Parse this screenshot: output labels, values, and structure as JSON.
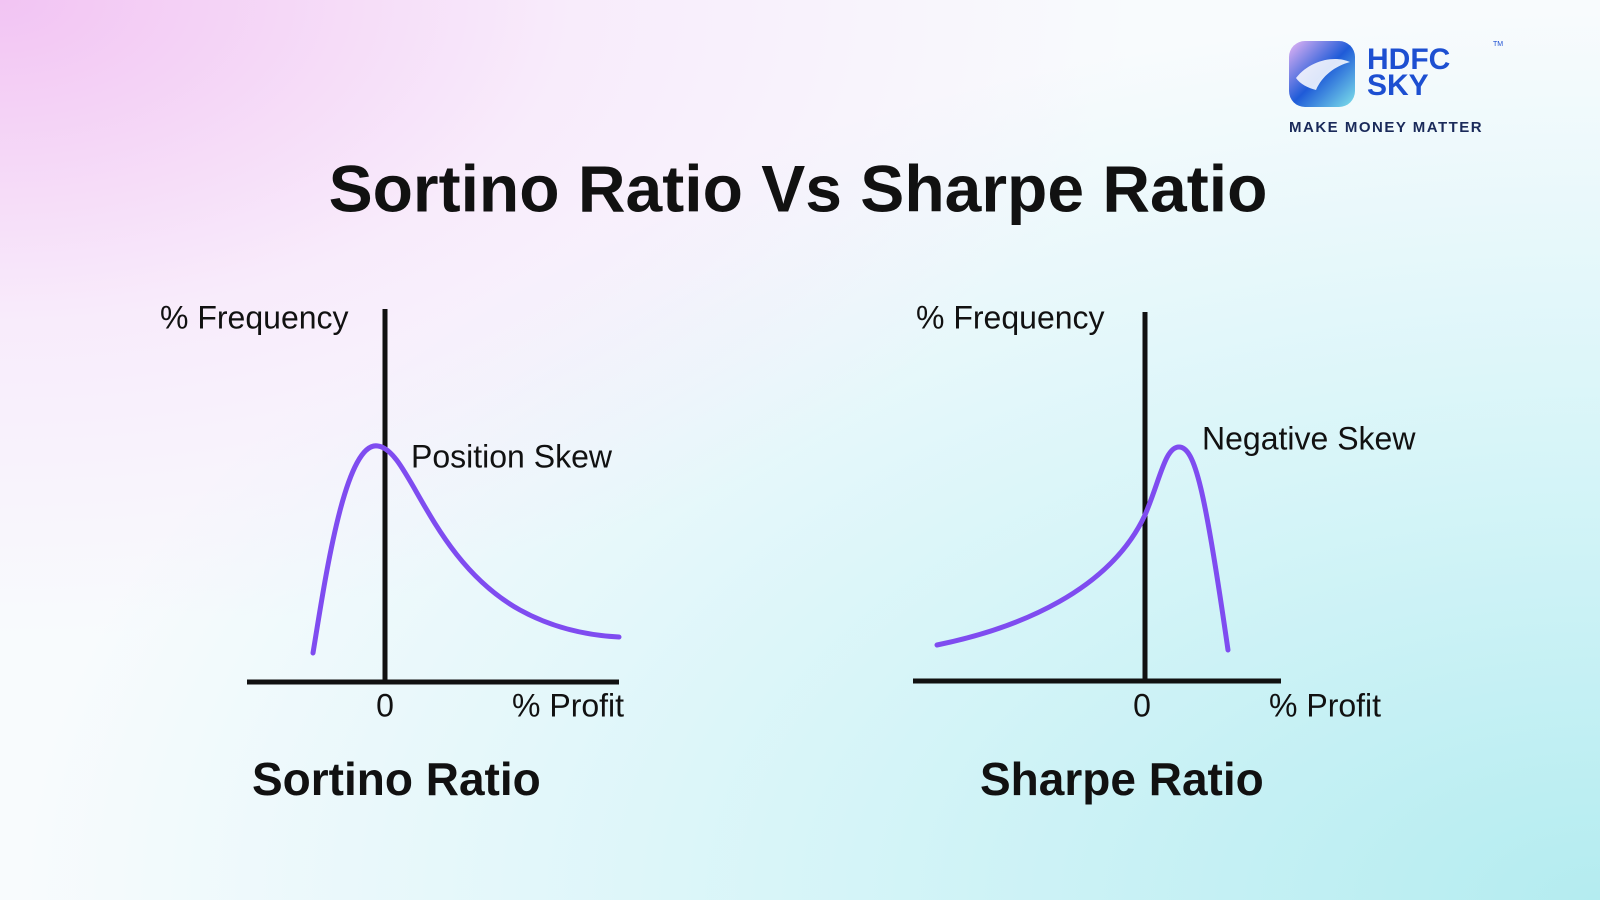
{
  "logo": {
    "brand_top": "HDFC",
    "brand_bottom": "SKY",
    "trademark": "TM",
    "tagline": "MAKE MONEY MATTER"
  },
  "title": "Sortino Ratio Vs Sharpe Ratio",
  "panels": [
    {
      "y_label": "% Frequency",
      "x_label": "% Profit",
      "origin_label": "0",
      "annotation": "Position Skew",
      "caption": "Sortino Ratio"
    },
    {
      "y_label": "% Frequency",
      "x_label": "% Profit",
      "origin_label": "0",
      "annotation": "Negative Skew",
      "caption": "Sharpe Ratio"
    }
  ]
}
